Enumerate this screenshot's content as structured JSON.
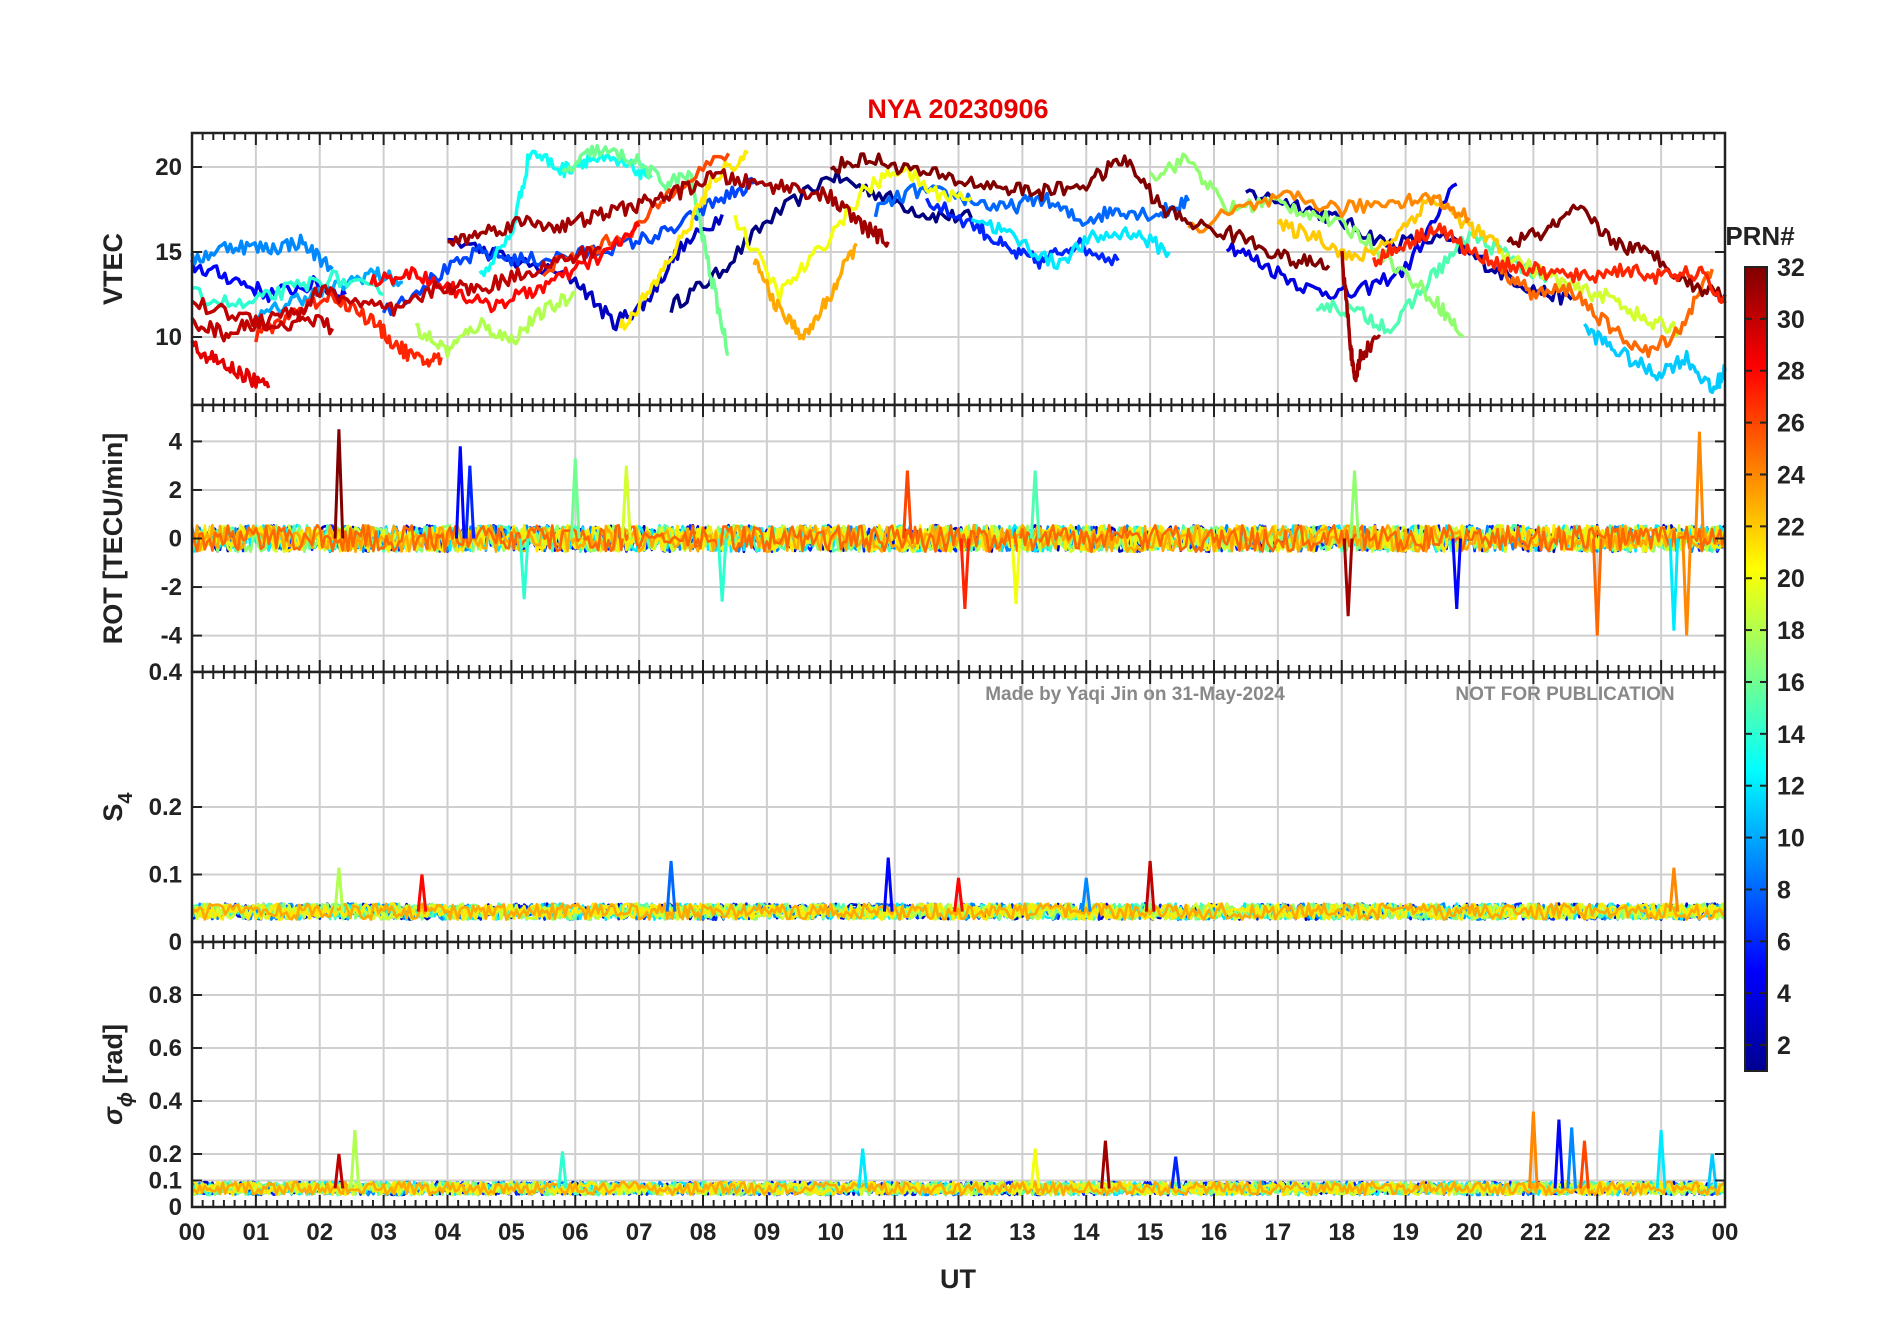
{
  "figure": {
    "station": "NYA",
    "date": "20230906",
    "watermark_left": "Made by Yaqi Jin on 31-May-2024",
    "watermark_right": "NOT FOR PUBLICATION",
    "xlabel": "UT"
  },
  "colorbar": {
    "label": "PRN#",
    "range": [
      1,
      32
    ],
    "ticks": [
      "2",
      "4",
      "6",
      "8",
      "10",
      "12",
      "14",
      "16",
      "18",
      "20",
      "22",
      "24",
      "26",
      "28",
      "30",
      "32"
    ],
    "colormap": "jet"
  },
  "chart_data": [
    {
      "type": "line",
      "panel": "vtec",
      "title": "NYA   20230906",
      "ylabel": "VTEC",
      "xlim": [
        0,
        24
      ],
      "ylim": [
        6,
        22
      ],
      "yticks": [
        "10",
        "15",
        "20"
      ],
      "ytick_values": [
        10,
        15,
        20
      ],
      "xticks": [
        "00",
        "01",
        "02",
        "03",
        "04",
        "05",
        "06",
        "07",
        "08",
        "09",
        "10",
        "11",
        "12",
        "13",
        "14",
        "15",
        "16",
        "17",
        "18",
        "19",
        "20",
        "21",
        "22",
        "23",
        "00"
      ],
      "series": [
        {
          "prn": 1,
          "x": [
            7.5,
            8.2,
            9.0,
            10.0,
            10.7,
            11.5,
            12.2
          ],
          "y": [
            11.8,
            13.6,
            16.8,
            19.5,
            18.5,
            17.2,
            17.0
          ]
        },
        {
          "prn": 2,
          "x": [
            16.5,
            17.3,
            18.0,
            18.7,
            19.6,
            20.3,
            21.0,
            21.6
          ],
          "y": [
            18.5,
            17.8,
            16.8,
            15.5,
            15.8,
            14.2,
            12.8,
            12.2
          ]
        },
        {
          "prn": 3,
          "x": [
            4.0,
            5.0,
            6.0,
            6.6,
            7.1,
            7.6,
            8.3
          ],
          "y": [
            15.8,
            14.5,
            13.4,
            10.8,
            12.0,
            15.0,
            17.2
          ]
        },
        {
          "prn": 4,
          "x": [
            16.2,
            16.8,
            17.5,
            18.2,
            19.0,
            19.8
          ],
          "y": [
            15.5,
            14.2,
            12.8,
            12.5,
            14.0,
            19.0
          ]
        },
        {
          "prn": 5,
          "x": [
            0.0,
            0.6,
            1.2,
            1.9,
            2.4
          ],
          "y": [
            14.2,
            13.5,
            12.5,
            13.1,
            12.5
          ]
        },
        {
          "prn": 6,
          "x": [
            11.5,
            12.3,
            12.8,
            13.3,
            13.8,
            14.5
          ],
          "y": [
            18.0,
            16.5,
            15.0,
            14.4,
            15.5,
            14.5
          ]
        },
        {
          "prn": 7,
          "x": [
            3.0,
            3.8,
            4.5,
            5.2,
            6.0,
            6.8,
            7.5,
            8.2,
            8.8
          ],
          "y": [
            11.5,
            13.5,
            15.0,
            14.5,
            14.8,
            15.5,
            16.2,
            18.0,
            19.0
          ]
        },
        {
          "prn": 8,
          "x": [
            10.7,
            11.3,
            12.0,
            12.7,
            13.3,
            13.9,
            14.5,
            15.1,
            15.6
          ],
          "y": [
            17.5,
            18.6,
            18.3,
            17.5,
            18.2,
            16.8,
            17.5,
            17.2,
            18.0
          ]
        },
        {
          "prn": 9,
          "x": [
            0.0,
            0.6,
            1.2,
            1.7,
            2.2
          ],
          "y": [
            14.5,
            15.4,
            15.2,
            15.6,
            14.0
          ]
        },
        {
          "prn": 10,
          "x": [
            1.0,
            1.6,
            2.2,
            2.8,
            3.3
          ],
          "y": [
            11.0,
            12.2,
            12.8,
            13.8,
            13.2
          ]
        },
        {
          "prn": 11,
          "x": [
            21.8,
            22.3,
            22.9,
            23.4,
            23.8,
            24.0
          ],
          "y": [
            10.5,
            9.2,
            7.8,
            8.8,
            6.8,
            8.0
          ]
        },
        {
          "prn": 12,
          "x": [
            12.2,
            12.8,
            13.5,
            14.1,
            14.7,
            15.3
          ],
          "y": [
            17.2,
            16.0,
            14.3,
            15.8,
            16.2,
            15.0
          ]
        },
        {
          "prn": 13,
          "x": [
            4.5,
            5.0,
            5.3,
            5.8,
            6.2,
            6.7,
            7.2
          ],
          "y": [
            13.5,
            16.0,
            21.0,
            19.8,
            20.5,
            20.2,
            19.5
          ]
        },
        {
          "prn": 14,
          "x": [
            0.0,
            0.8,
            1.5,
            2.2,
            3.0
          ],
          "y": [
            12.5,
            11.8,
            12.8,
            13.5,
            12.5
          ]
        },
        {
          "prn": 15,
          "x": [
            17.6,
            18.2,
            18.8,
            19.4,
            20.0,
            20.6,
            21.2
          ],
          "y": [
            12.0,
            11.5,
            10.5,
            13.5,
            16.0,
            14.8,
            13.2
          ]
        },
        {
          "prn": 16,
          "x": [
            5.8,
            6.3,
            6.9,
            7.4,
            7.8,
            8.1,
            8.4
          ],
          "y": [
            19.5,
            21.0,
            20.5,
            19.0,
            19.5,
            14.0,
            9.0
          ]
        },
        {
          "prn": 17,
          "x": [
            15.0,
            15.6,
            16.2,
            16.9,
            17.6,
            18.3,
            18.9,
            19.5,
            19.9
          ],
          "y": [
            19.5,
            20.5,
            17.5,
            18.0,
            17.2,
            16.0,
            14.0,
            12.0,
            10.0
          ]
        },
        {
          "prn": 18,
          "x": [
            3.5,
            4.0,
            4.5,
            5.0,
            5.5,
            6.0
          ],
          "y": [
            10.5,
            9.2,
            10.8,
            9.8,
            11.5,
            12.5
          ]
        },
        {
          "prn": 19,
          "x": [
            20.5,
            21.1,
            21.7,
            22.3,
            22.8,
            23.3
          ],
          "y": [
            15.0,
            13.8,
            12.8,
            12.2,
            10.8,
            10.5
          ]
        },
        {
          "prn": 20,
          "x": [
            8.5,
            9.2,
            9.8,
            10.5,
            11.1,
            11.6,
            12.2
          ],
          "y": [
            17.0,
            12.5,
            15.0,
            18.5,
            20.0,
            18.5,
            18.2
          ]
        },
        {
          "prn": 21,
          "x": [
            6.7,
            7.2,
            7.7,
            8.2,
            8.7
          ],
          "y": [
            10.5,
            12.8,
            16.0,
            19.5,
            20.8
          ]
        },
        {
          "prn": 22,
          "x": [
            17.0,
            17.6,
            18.2,
            18.8,
            19.4,
            20.0,
            20.5
          ],
          "y": [
            16.5,
            16.0,
            14.5,
            15.8,
            18.2,
            16.5,
            15.2
          ]
        },
        {
          "prn": 23,
          "x": [
            8.8,
            9.2,
            9.6,
            10.0,
            10.4
          ],
          "y": [
            14.5,
            11.5,
            10.0,
            12.5,
            15.5
          ]
        },
        {
          "prn": 24,
          "x": [
            15.6,
            16.4,
            17.2,
            18.0,
            18.8,
            19.4,
            20.0
          ],
          "y": [
            16.2,
            17.5,
            18.2,
            17.5,
            18.0,
            18.2,
            17.0
          ]
        },
        {
          "prn": 25,
          "x": [
            20.5,
            21.0,
            21.6,
            22.2,
            22.8,
            23.3,
            23.8
          ],
          "y": [
            14.0,
            12.5,
            12.8,
            10.5,
            9.0,
            10.5,
            14.0
          ]
        },
        {
          "prn": 26,
          "x": [
            5.5,
            6.2,
            7.0,
            7.6,
            8.4
          ],
          "y": [
            14.0,
            15.0,
            16.5,
            19.0,
            20.8
          ]
        },
        {
          "prn": 27,
          "x": [
            1.0,
            1.6,
            2.2,
            2.8,
            3.2,
            3.6,
            3.9
          ],
          "y": [
            10.0,
            11.5,
            12.5,
            11.0,
            9.5,
            8.5,
            8.8
          ]
        },
        {
          "prn": 28,
          "x": [
            2.8,
            3.4,
            4.0,
            4.6,
            5.2,
            5.8,
            6.5,
            7.0
          ],
          "y": [
            13.2,
            13.8,
            13.0,
            11.8,
            12.5,
            13.5,
            15.0,
            16.5
          ]
        },
        {
          "prn": 29,
          "x": [
            0.0,
            0.4,
            0.8,
            1.2
          ],
          "y": [
            9.5,
            8.5,
            7.8,
            7.0
          ]
        },
        {
          "prn": 30,
          "x": [
            0.0,
            0.5,
            1.0,
            1.6,
            2.2
          ],
          "y": [
            11.0,
            10.2,
            10.8,
            11.5,
            10.5
          ]
        },
        {
          "prn": 31,
          "x": [
            18.0,
            18.1,
            18.2,
            18.3,
            18.6
          ],
          "y": [
            14.8,
            11.0,
            7.2,
            9.0,
            10.0
          ]
        },
        {
          "prn": 32,
          "x": [
            10.0,
            10.6,
            11.3,
            12.0,
            12.7,
            13.3,
            14.0,
            14.6,
            15.2,
            15.8,
            16.5,
            17.2,
            17.8
          ],
          "y": [
            20.0,
            20.5,
            19.8,
            19.2,
            18.8,
            18.5,
            19.0,
            20.5,
            17.5,
            16.5,
            15.8,
            14.5,
            14.2
          ]
        },
        {
          "prn": 30,
          "x": [
            0.0,
            0.8,
            1.5,
            2.0,
            2.6,
            3.2,
            3.9,
            4.5,
            5.2,
            5.8,
            6.4
          ],
          "y": [
            12.0,
            11.2,
            10.5,
            12.8,
            12.0,
            11.5,
            13.0,
            12.8,
            13.8,
            14.5,
            15.2
          ]
        },
        {
          "prn": 31,
          "x": [
            4.0,
            4.6,
            5.2,
            5.8,
            6.4,
            7.0,
            7.6,
            8.2,
            8.8,
            9.4,
            10.0,
            10.5,
            10.9
          ],
          "y": [
            15.5,
            16.2,
            16.8,
            16.5,
            17.2,
            17.8,
            18.5,
            19.5,
            19.0,
            18.8,
            18.2,
            16.5,
            15.6
          ]
        },
        {
          "prn": 32,
          "x": [
            20.6,
            21.2,
            21.7,
            22.3,
            22.9,
            23.5,
            24.0
          ],
          "y": [
            15.5,
            16.2,
            17.5,
            15.5,
            14.8,
            13.0,
            12.5
          ]
        },
        {
          "prn": 27,
          "x": [
            18.5,
            19.0,
            19.5,
            20.0,
            20.6,
            21.2,
            21.8,
            22.4,
            23.0,
            23.6,
            24.0
          ],
          "y": [
            14.5,
            15.5,
            16.5,
            15.0,
            14.2,
            13.8,
            13.5,
            14.0,
            13.5,
            13.8,
            12.0
          ]
        }
      ]
    },
    {
      "type": "line",
      "panel": "rot",
      "ylabel": "ROT [TECU/min]",
      "xlim": [
        0,
        24
      ],
      "ylim": [
        -5.5,
        5.5
      ],
      "yticks": [
        "-4",
        "-2",
        "0",
        "2",
        "4"
      ],
      "ytick_values": [
        -4,
        -2,
        0,
        2,
        4
      ],
      "spikes": [
        {
          "prn": 32,
          "x": 2.3,
          "y": 4.5
        },
        {
          "prn": 5,
          "x": 4.2,
          "y": 3.8
        },
        {
          "prn": 6,
          "x": 4.35,
          "y": 3.0
        },
        {
          "prn": 14,
          "x": 5.2,
          "y": -2.5
        },
        {
          "prn": 16,
          "x": 6.0,
          "y": 3.3
        },
        {
          "prn": 19,
          "x": 6.8,
          "y": 3.0
        },
        {
          "prn": 14,
          "x": 8.3,
          "y": -2.6
        },
        {
          "prn": 26,
          "x": 11.2,
          "y": 2.8
        },
        {
          "prn": 27,
          "x": 12.1,
          "y": -2.9
        },
        {
          "prn": 20,
          "x": 12.9,
          "y": -2.7
        },
        {
          "prn": 15,
          "x": 13.2,
          "y": 2.8
        },
        {
          "prn": 31,
          "x": 18.1,
          "y": -3.2
        },
        {
          "prn": 17,
          "x": 18.2,
          "y": 2.8
        },
        {
          "prn": 5,
          "x": 19.8,
          "y": -2.9
        },
        {
          "prn": 25,
          "x": 22.0,
          "y": -4.0
        },
        {
          "prn": 24,
          "x": 23.6,
          "y": 4.4
        },
        {
          "prn": 24,
          "x": 23.4,
          "y": -4.0
        },
        {
          "prn": 12,
          "x": 23.2,
          "y": -3.8
        }
      ]
    },
    {
      "type": "line",
      "panel": "s4",
      "ylabel": "S",
      "ylabel_sub": "4",
      "xlim": [
        0,
        24
      ],
      "ylim": [
        0,
        0.4
      ],
      "yticks": [
        "0",
        "0.1",
        "0.2",
        "0.4"
      ],
      "ytick_values": [
        0,
        0.1,
        0.2,
        0.4
      ],
      "spikes": [
        {
          "prn": 18,
          "x": 2.3,
          "y": 0.11
        },
        {
          "prn": 28,
          "x": 3.6,
          "y": 0.1
        },
        {
          "prn": 8,
          "x": 7.5,
          "y": 0.12
        },
        {
          "prn": 5,
          "x": 10.9,
          "y": 0.125
        },
        {
          "prn": 28,
          "x": 12.0,
          "y": 0.095
        },
        {
          "prn": 9,
          "x": 14.0,
          "y": 0.095
        },
        {
          "prn": 30,
          "x": 15.0,
          "y": 0.12
        },
        {
          "prn": 24,
          "x": 23.2,
          "y": 0.11
        }
      ]
    },
    {
      "type": "line",
      "panel": "sigma_phi",
      "ylabel": "σ",
      "ylabel_sub": "ϕ",
      "ylabel_unit": "[rad]",
      "xlim": [
        0,
        24
      ],
      "ylim": [
        0,
        1.0
      ],
      "yticks": [
        "0",
        "0.1",
        "0.2",
        "0.4",
        "0.6",
        "0.8"
      ],
      "ytick_values": [
        0,
        0.1,
        0.2,
        0.4,
        0.6,
        0.8
      ],
      "spikes": [
        {
          "prn": 18,
          "x": 2.55,
          "y": 0.29
        },
        {
          "prn": 30,
          "x": 2.3,
          "y": 0.2
        },
        {
          "prn": 14,
          "x": 5.8,
          "y": 0.21
        },
        {
          "prn": 12,
          "x": 10.5,
          "y": 0.22
        },
        {
          "prn": 20,
          "x": 13.2,
          "y": 0.22
        },
        {
          "prn": 31,
          "x": 14.3,
          "y": 0.25
        },
        {
          "prn": 6,
          "x": 15.4,
          "y": 0.19
        },
        {
          "prn": 24,
          "x": 21.0,
          "y": 0.36
        },
        {
          "prn": 5,
          "x": 21.4,
          "y": 0.33
        },
        {
          "prn": 9,
          "x": 21.6,
          "y": 0.3
        },
        {
          "prn": 26,
          "x": 21.8,
          "y": 0.25
        },
        {
          "prn": 12,
          "x": 23.0,
          "y": 0.29
        },
        {
          "prn": 11,
          "x": 23.8,
          "y": 0.2
        }
      ]
    }
  ]
}
